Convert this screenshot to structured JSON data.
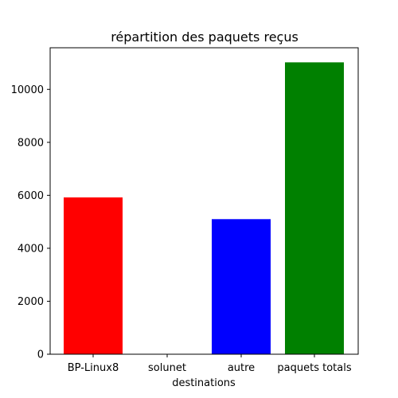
{
  "chart_data": {
    "type": "bar",
    "title": "répartition des paquets reçus",
    "xlabel": "destinations",
    "ylabel": "",
    "categories": [
      "BP-Linux8",
      "solunet",
      "autre",
      "paquets totals"
    ],
    "values": [
      5920,
      0,
      5100,
      11020
    ],
    "colors": [
      "#ff0000",
      "#ffffff",
      "#0000ff",
      "#008000"
    ],
    "yticks": [
      0,
      2000,
      4000,
      6000,
      8000,
      10000
    ],
    "ylim": [
      0,
      11571
    ],
    "grid": false,
    "legend": "none"
  }
}
